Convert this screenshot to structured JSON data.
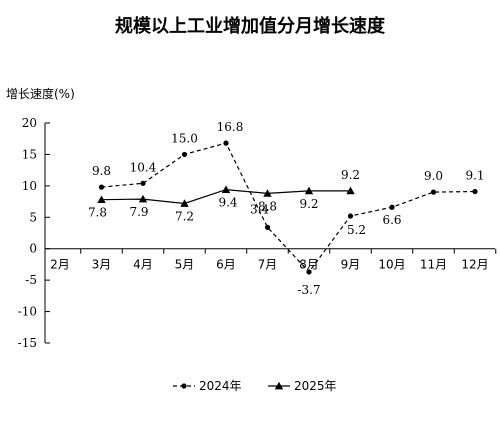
{
  "chart_data": {
    "type": "line",
    "title": "规模以上工业增加值分月增长速度",
    "ylabel": "增长速度(%)",
    "xlabel": "",
    "categories": [
      "2月",
      "3月",
      "4月",
      "5月",
      "6月",
      "7月",
      "8月",
      "9月",
      "10月",
      "11月",
      "12月"
    ],
    "ylim": [
      -15,
      20
    ],
    "yticks": [
      20,
      15,
      10,
      5,
      0,
      -5,
      -10,
      -15
    ],
    "ytick_labels": [
      "20",
      "15",
      "10",
      "5",
      "0",
      "-5",
      "-10",
      "-15"
    ],
    "grid": false,
    "legend_position": "bottom",
    "series": [
      {
        "name": "2024年",
        "style": "dashed",
        "marker": "circle",
        "color": "#000000",
        "values": [
          null,
          9.8,
          10.4,
          15.0,
          16.8,
          3.4,
          -3.7,
          5.2,
          6.6,
          9.0,
          9.1
        ],
        "labels": [
          "",
          "9.8",
          "10.4",
          "15.0",
          "16.8",
          "3.4",
          "-3.7",
          "5.2",
          "6.6",
          "9.0",
          "9.1"
        ]
      },
      {
        "name": "2025年",
        "style": "solid",
        "marker": "triangle",
        "color": "#000000",
        "values": [
          null,
          7.8,
          7.9,
          7.2,
          9.4,
          8.8,
          9.2,
          9.2,
          null,
          null,
          null
        ],
        "labels": [
          "",
          "7.8",
          "7.9",
          "7.2",
          "9.4",
          "8.8",
          "9.2",
          "9.2",
          "",
          "",
          ""
        ]
      }
    ]
  }
}
